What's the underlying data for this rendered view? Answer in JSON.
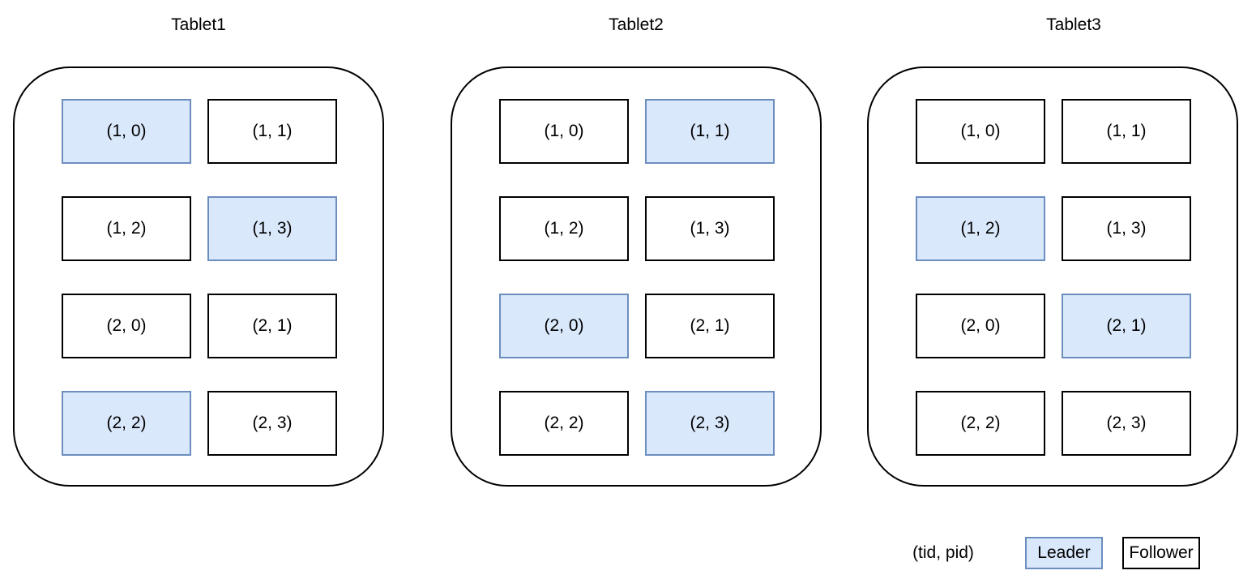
{
  "colors": {
    "leader_fill": "#dae8fc",
    "leader_border": "#6c8ebf",
    "follower_fill": "#ffffff",
    "follower_border": "#000000"
  },
  "tablets": [
    {
      "title": "Tablet1",
      "partitions": [
        {
          "label": "(1, 0)",
          "role": "leader"
        },
        {
          "label": "(1, 1)",
          "role": "follower"
        },
        {
          "label": "(1, 2)",
          "role": "follower"
        },
        {
          "label": "(1, 3)",
          "role": "leader"
        },
        {
          "label": "(2, 0)",
          "role": "follower"
        },
        {
          "label": "(2, 1)",
          "role": "follower"
        },
        {
          "label": "(2, 2)",
          "role": "leader"
        },
        {
          "label": "(2, 3)",
          "role": "follower"
        }
      ]
    },
    {
      "title": "Tablet2",
      "partitions": [
        {
          "label": "(1, 0)",
          "role": "follower"
        },
        {
          "label": "(1, 1)",
          "role": "leader"
        },
        {
          "label": "(1, 2)",
          "role": "follower"
        },
        {
          "label": "(1, 3)",
          "role": "follower"
        },
        {
          "label": "(2, 0)",
          "role": "leader"
        },
        {
          "label": "(2, 1)",
          "role": "follower"
        },
        {
          "label": "(2, 2)",
          "role": "follower"
        },
        {
          "label": "(2, 3)",
          "role": "leader"
        }
      ]
    },
    {
      "title": "Tablet3",
      "partitions": [
        {
          "label": "(1, 0)",
          "role": "follower"
        },
        {
          "label": "(1, 1)",
          "role": "follower"
        },
        {
          "label": "(1, 2)",
          "role": "leader"
        },
        {
          "label": "(1, 3)",
          "role": "follower"
        },
        {
          "label": "(2, 0)",
          "role": "follower"
        },
        {
          "label": "(2, 1)",
          "role": "leader"
        },
        {
          "label": "(2, 2)",
          "role": "follower"
        },
        {
          "label": "(2, 3)",
          "role": "follower"
        }
      ]
    }
  ],
  "legend": {
    "key_label": "(tid, pid)",
    "leader_label": "Leader",
    "follower_label": "Follower"
  }
}
